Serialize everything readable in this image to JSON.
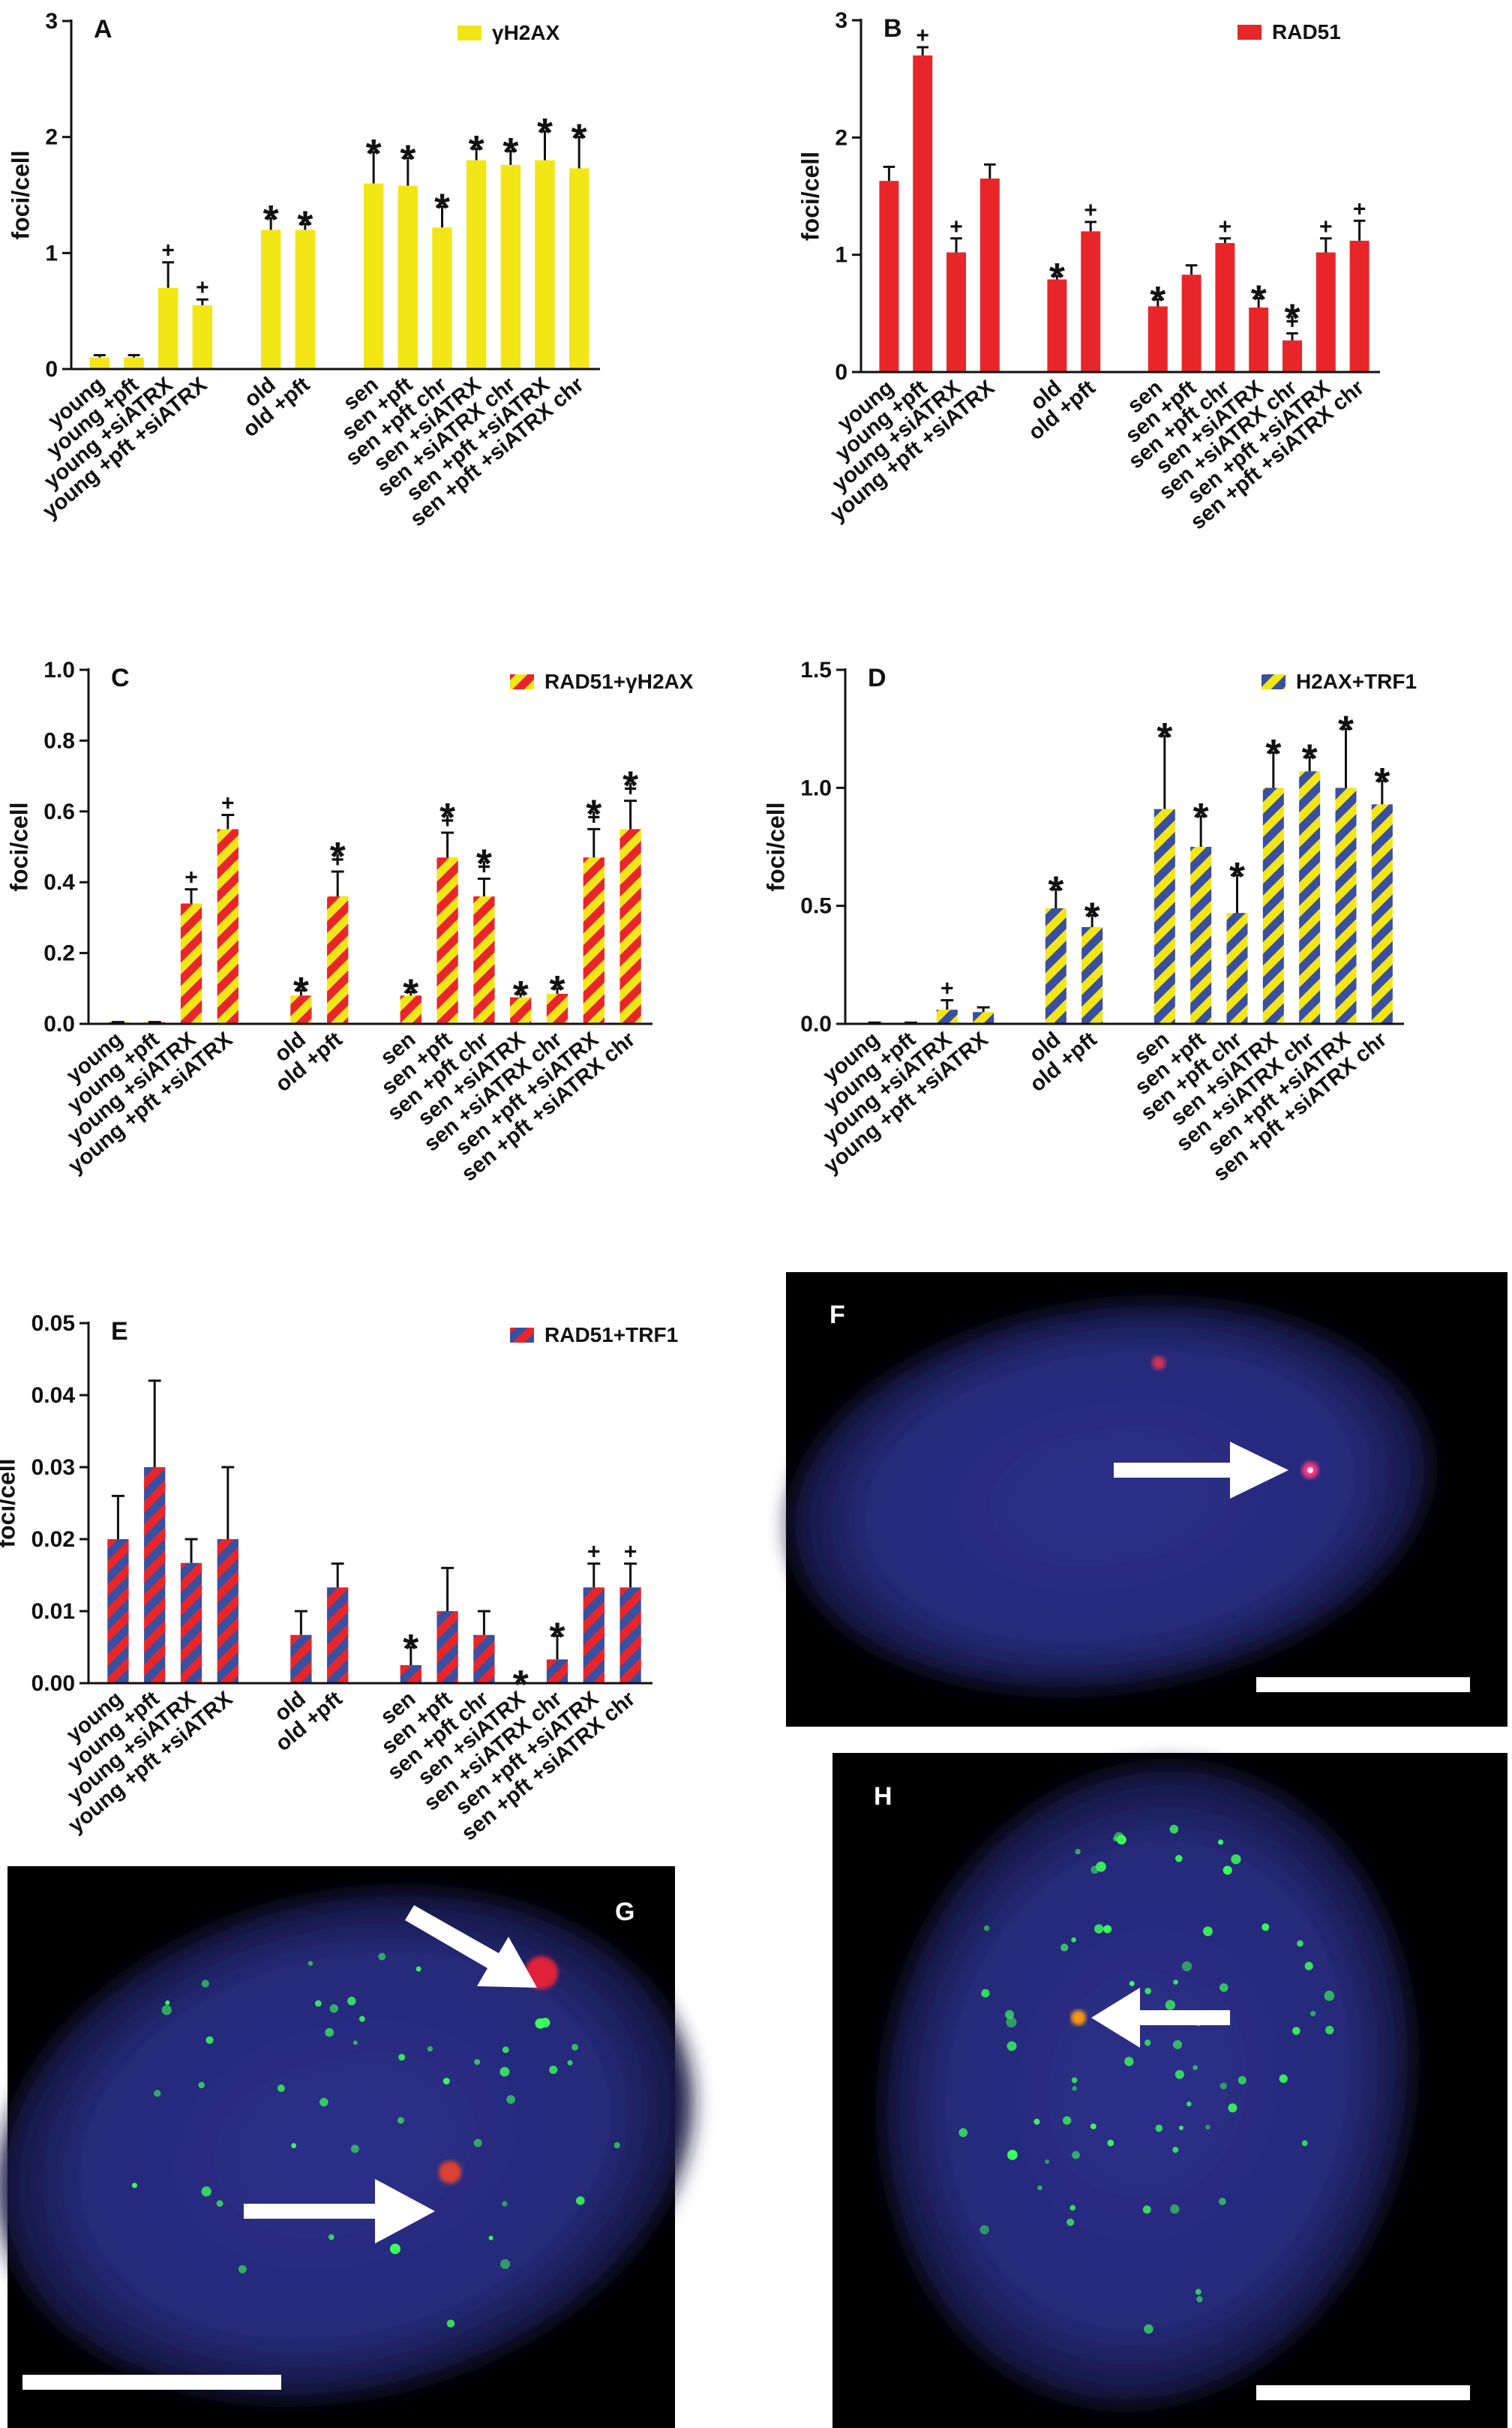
{
  "chart_data": [
    {
      "type": "bar",
      "panel_label": "A",
      "ylabel": "foci/cell",
      "categories": [
        "young",
        "young +pft",
        "young +siATRX",
        "young +pft +siATRX",
        null,
        "old",
        "old +pft",
        null,
        "sen",
        "sen +pft",
        "sen +pft chr",
        "sen +siATRX",
        "sen +siATRX chr",
        "sen +pft +siATRX",
        "sen +pft +siATRX chr"
      ],
      "series": [
        {
          "name": "γH2AX",
          "color": "#f3e617",
          "hatch_color": null,
          "values": [
            0.1,
            0.1,
            0.7,
            0.55,
            null,
            1.2,
            1.2,
            null,
            1.6,
            1.58,
            1.22,
            1.8,
            1.76,
            1.8,
            1.73
          ],
          "errors": [
            0.02,
            0.02,
            0.22,
            0.05,
            null,
            0.1,
            0.05,
            null,
            0.27,
            0.24,
            0.18,
            0.1,
            0.12,
            0.25,
            0.27
          ],
          "markers": [
            null,
            null,
            [
              "+"
            ],
            [
              "+"
            ],
            null,
            [
              "*"
            ],
            [
              "*"
            ],
            null,
            [
              "*"
            ],
            [
              "*"
            ],
            [
              "*"
            ],
            [
              "*"
            ],
            [
              "*"
            ],
            [
              "*"
            ],
            [
              "*"
            ]
          ]
        }
      ],
      "ylim": [
        0,
        3
      ],
      "yticks": [
        0,
        1,
        2,
        3
      ],
      "legend": "upper right"
    },
    {
      "type": "bar",
      "panel_label": "B",
      "ylabel": "foci/cell",
      "categories": [
        "young",
        "young +pft",
        "young +siATRX",
        "young +pft +siATRX",
        null,
        "old",
        "old +pft",
        null,
        "sen",
        "sen +pft",
        "sen +pft chr",
        "sen +siATRX",
        "sen +siATRX chr",
        "sen +pft +siATRX",
        "sen +pft +siATRX chr"
      ],
      "series": [
        {
          "name": "RAD51",
          "color": "#e8262a",
          "hatch_color": null,
          "values": [
            1.63,
            2.7,
            1.02,
            1.65,
            null,
            0.79,
            1.2,
            null,
            0.56,
            0.83,
            1.1,
            0.55,
            0.27,
            1.02,
            1.12
          ],
          "errors": [
            0.12,
            0.07,
            0.12,
            0.12,
            null,
            0.03,
            0.08,
            null,
            0.06,
            0.08,
            0.04,
            0.08,
            0.06,
            0.12,
            0.17
          ],
          "markers": [
            null,
            [
              "+"
            ],
            [
              "+"
            ],
            null,
            null,
            [
              "*"
            ],
            [
              "+"
            ],
            null,
            [
              "*"
            ],
            null,
            [
              "+"
            ],
            [
              "*"
            ],
            [
              "*",
              "+"
            ],
            [
              "+"
            ],
            [
              "+"
            ]
          ]
        }
      ],
      "ylim": [
        0,
        3
      ],
      "yticks": [
        0,
        1,
        2,
        3
      ],
      "legend": "upper right"
    },
    {
      "type": "bar",
      "panel_label": "C",
      "ylabel": "foci/cell",
      "categories": [
        "young",
        "young +pft",
        "young +siATRX",
        "young +pft +siATRX",
        null,
        "old",
        "old +pft",
        null,
        "sen",
        "sen +pft",
        "sen +pft chr",
        "sen +siATRX",
        "sen +siATRX chr",
        "sen +pft +siATRX",
        "sen +pft +siATRX chr"
      ],
      "series": [
        {
          "name": "RAD51+γH2AX",
          "color": "#e8262a",
          "hatch_color": "#f3e617",
          "values": [
            0.005,
            0.005,
            0.34,
            0.55,
            null,
            0.08,
            0.36,
            null,
            0.08,
            0.47,
            0.36,
            0.075,
            0.085,
            0.47,
            0.55
          ],
          "errors": [
            0,
            0,
            0.04,
            0.04,
            null,
            0.015,
            0.07,
            null,
            0.01,
            0.07,
            0.05,
            0.01,
            0.015,
            0.08,
            0.08
          ],
          "markers": [
            null,
            null,
            [
              "+"
            ],
            [
              "+"
            ],
            null,
            [
              "*"
            ],
            [
              "*",
              "+"
            ],
            null,
            [
              "*"
            ],
            [
              "*",
              "+"
            ],
            [
              "*",
              "+"
            ],
            [
              "*"
            ],
            [
              "*"
            ],
            [
              "*",
              "+"
            ],
            [
              "*",
              "+"
            ]
          ]
        }
      ],
      "ylim": [
        0,
        1
      ],
      "yticks": [
        {
          "value": 0,
          "label": "0.0"
        },
        0.2,
        0.4,
        0.6,
        0.8,
        {
          "value": 1,
          "label": "1.0"
        }
      ],
      "legend": "upper right"
    },
    {
      "type": "bar",
      "panel_label": "D",
      "ylabel": "foci/cell",
      "categories": [
        "young",
        "young +pft",
        "young +siATRX",
        "young +pft +siATRX",
        null,
        "old",
        "old +pft",
        null,
        "sen",
        "sen +pft",
        "sen +pft chr",
        "sen +siATRX",
        "sen +siATRX chr",
        "sen +pft +siATRX",
        "sen +pft +siATRX chr"
      ],
      "series": [
        {
          "name": "H2AX+TRF1",
          "color": "#f3e617",
          "hatch_color": "#3a4fa0",
          "values": [
            0.005,
            0.005,
            0.06,
            0.05,
            null,
            0.49,
            0.41,
            null,
            0.91,
            0.75,
            0.47,
            1.0,
            1.07,
            1.0,
            0.93
          ],
          "errors": [
            0,
            0,
            0.04,
            0.02,
            null,
            0.08,
            0.05,
            null,
            0.31,
            0.13,
            0.16,
            0.15,
            0.06,
            0.25,
            0.1
          ],
          "markers": [
            null,
            null,
            [
              "+"
            ],
            null,
            null,
            [
              "*"
            ],
            [
              "*"
            ],
            null,
            [
              "*"
            ],
            [
              "*"
            ],
            [
              "*"
            ],
            [
              "*"
            ],
            [
              "*"
            ],
            [
              "*"
            ],
            [
              "*"
            ]
          ]
        }
      ],
      "ylim": [
        0,
        1.5
      ],
      "yticks": [
        {
          "value": 0,
          "label": "0.0"
        },
        0.5,
        {
          "value": 1,
          "label": "1.0"
        },
        1.5
      ],
      "legend": "upper right"
    },
    {
      "type": "bar",
      "panel_label": "E",
      "ylabel": "foci/cell",
      "categories": [
        "young",
        "young +pft",
        "young +siATRX",
        "young +pft +siATRX",
        null,
        "old",
        "old +pft",
        null,
        "sen",
        "sen +pft",
        "sen +pft chr",
        "sen +siATRX",
        "sen +siATRX chr",
        "sen +pft +siATRX",
        "sen +pft +siATRX chr"
      ],
      "series": [
        {
          "name": "RAD51+TRF1",
          "color": "#e8262a",
          "hatch_color": "#3a4fa0",
          "values": [
            0.02,
            0.03,
            0.0167,
            0.02,
            null,
            0.0067,
            0.0133,
            null,
            0.0025,
            0.01,
            0.0067,
            0,
            0.0033,
            0.0133,
            0.0133
          ],
          "errors": [
            0.006,
            0.012,
            0.0033,
            0.01,
            null,
            0.0033,
            0.0033,
            null,
            0.0025,
            0.006,
            0.0033,
            0,
            0.0033,
            0.0033,
            0.0033
          ],
          "markers": [
            null,
            null,
            null,
            null,
            null,
            null,
            null,
            null,
            [
              "*"
            ],
            null,
            null,
            [
              "*"
            ],
            [
              "*"
            ],
            [
              "+"
            ],
            [
              "+"
            ]
          ]
        }
      ],
      "ylim": [
        0,
        0.05
      ],
      "yticks": [
        {
          "value": 0,
          "label": "0.00"
        },
        {
          "value": 0.01,
          "label": "0.01"
        },
        {
          "value": 0.02,
          "label": "0.02"
        },
        {
          "value": 0.03,
          "label": "0.03"
        },
        {
          "value": 0.04,
          "label": "0.04"
        },
        {
          "value": 0.05,
          "label": "0.05"
        }
      ],
      "legend": "upper right"
    }
  ],
  "images": [
    {
      "panel_label": "F"
    },
    {
      "panel_label": "G"
    },
    {
      "panel_label": "H"
    }
  ]
}
